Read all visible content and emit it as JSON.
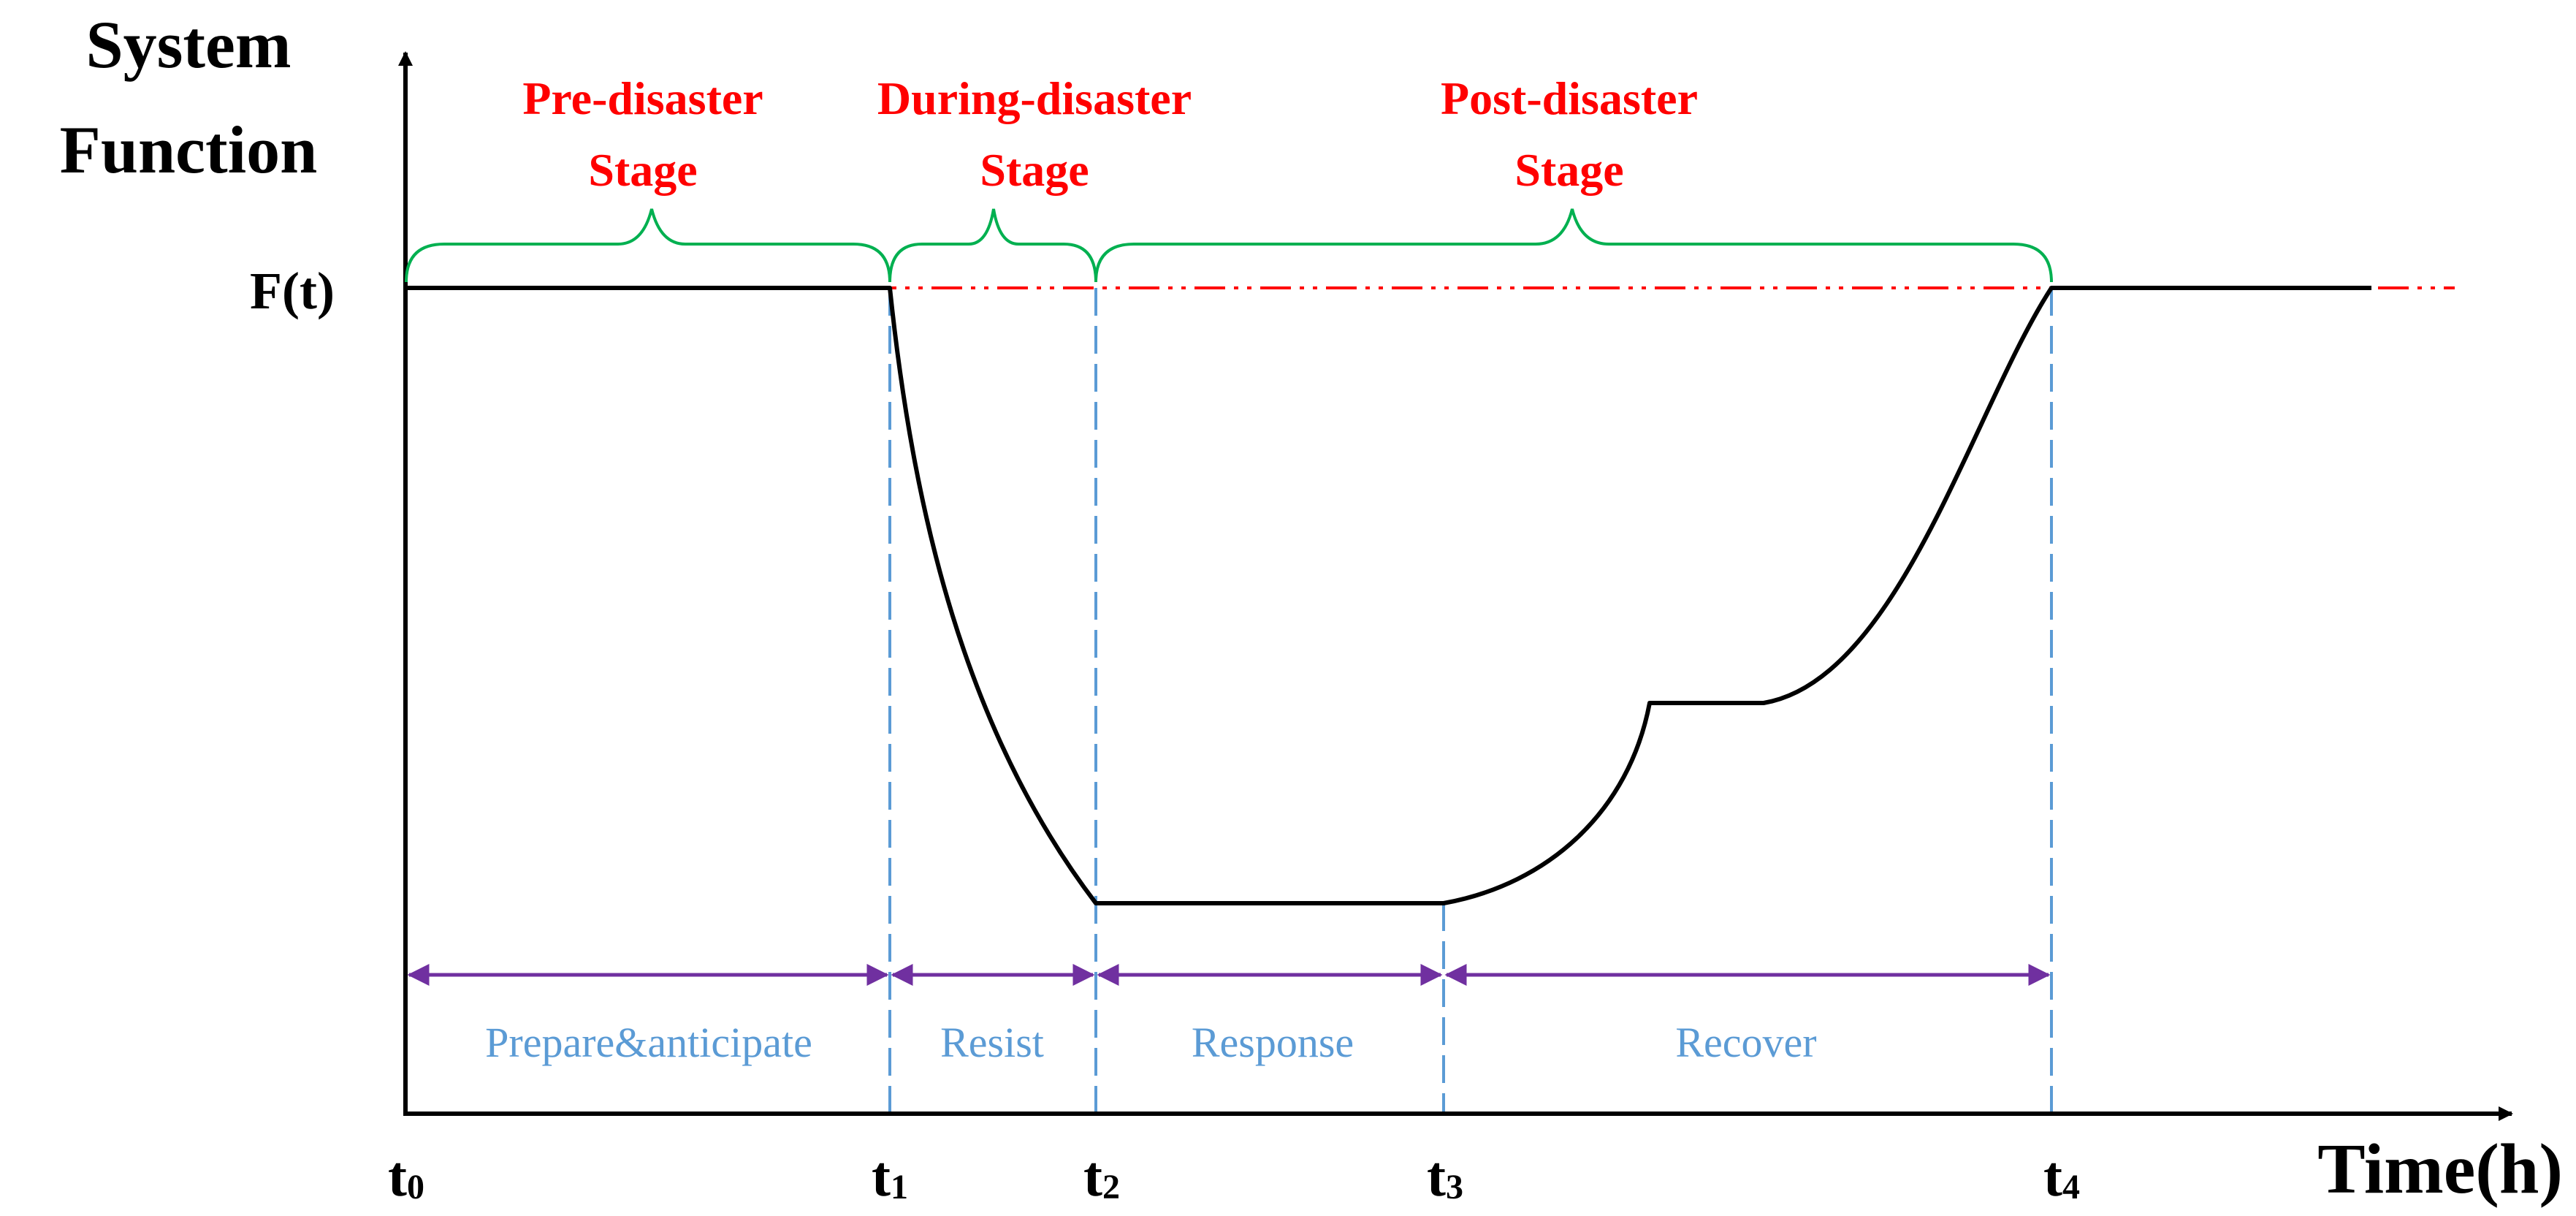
{
  "axes": {
    "y_title_line1": "System",
    "y_title_line2": "Function",
    "y_value_label": "F(t)",
    "x_title": "Time(h)"
  },
  "time_points": [
    {
      "base": "t",
      "sub": "0"
    },
    {
      "base": "t",
      "sub": "1"
    },
    {
      "base": "t",
      "sub": "2"
    },
    {
      "base": "t",
      "sub": "3"
    },
    {
      "base": "t",
      "sub": "4"
    }
  ],
  "stages": [
    {
      "line1": "Pre-disaster",
      "line2": "Stage"
    },
    {
      "line1": "During-disaster",
      "line2": "Stage"
    },
    {
      "line1": "Post-disaster",
      "line2": "Stage"
    }
  ],
  "phases": [
    {
      "label": "Prepare&anticipate"
    },
    {
      "label": "Resist"
    },
    {
      "label": "Response"
    },
    {
      "label": "Recover"
    }
  ],
  "colors": {
    "axis": "#000000",
    "curve": "#000000",
    "reference_line": "#ff0000",
    "stage_text": "#ff0000",
    "stage_brace": "#00b050",
    "time_marker": "#5b9bd5",
    "phase_text": "#5b9bd5",
    "phase_arrow": "#7030a0"
  },
  "icons": {
    "phase_arrow": "double-headed-arrow",
    "axis_arrow": "filled-triangle-arrowhead",
    "stage_brace": "curly-brace"
  }
}
